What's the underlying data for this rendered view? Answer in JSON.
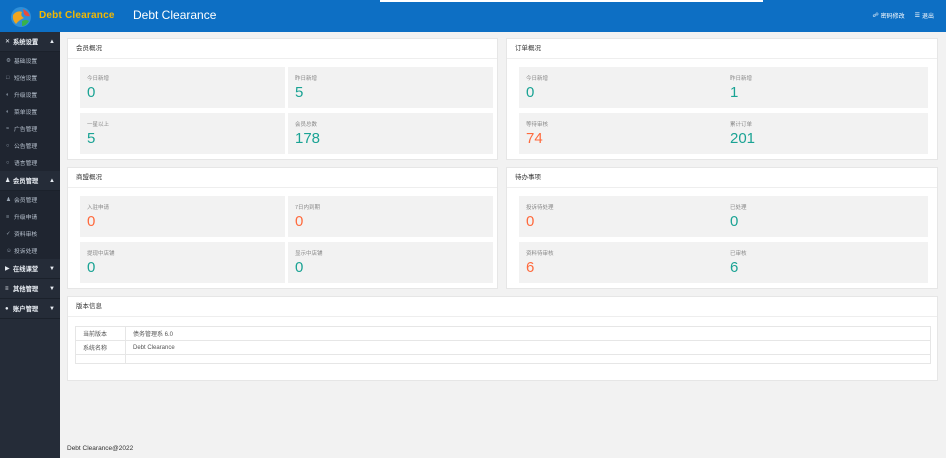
{
  "header": {
    "brand": "Debt Clearance",
    "title": "Debt Clearance",
    "change_password": "密码修改",
    "logout": "退出"
  },
  "sidebar": {
    "groups": [
      {
        "label": "系统设置",
        "items": [
          "基础设置",
          "短信设置",
          "升级设置",
          "菜单设置",
          "广告管理",
          "公告管理",
          "语言管理"
        ]
      },
      {
        "label": "会员管理",
        "items": [
          "会员管理",
          "升级申请",
          "资料审核",
          "投诉处理"
        ]
      },
      {
        "label": "在线课堂",
        "items": []
      },
      {
        "label": "其他管理",
        "items": []
      },
      {
        "label": "账户管理",
        "items": []
      }
    ]
  },
  "cards": {
    "members": {
      "title": "会员概况",
      "stats": [
        {
          "label": "今日新增",
          "value": "0"
        },
        {
          "label": "昨日新增",
          "value": "5"
        },
        {
          "label": "一星以上",
          "value": "5"
        },
        {
          "label": "会员总数",
          "value": "178"
        }
      ]
    },
    "orders": {
      "title": "订单概况",
      "stats": [
        {
          "label": "今日新增",
          "value": "0"
        },
        {
          "label": "昨日新增",
          "value": "1"
        },
        {
          "label": "等待审核",
          "value": "74"
        },
        {
          "label": "累计订单",
          "value": "201"
        }
      ]
    },
    "merchants": {
      "title": "商盟概况",
      "stats": [
        {
          "label": "入驻申请",
          "value": "0"
        },
        {
          "label": "7日内到期",
          "value": "0"
        },
        {
          "label": "提现中店铺",
          "value": "0"
        },
        {
          "label": "显示中店铺",
          "value": "0"
        }
      ]
    },
    "todo": {
      "title": "待办事项",
      "stats": [
        {
          "label": "投诉待处理",
          "value": "0"
        },
        {
          "label": "已处理",
          "value": "0"
        },
        {
          "label": "资料待审核",
          "value": "6"
        },
        {
          "label": "已审核",
          "value": "6"
        }
      ]
    },
    "version": {
      "title": "版本信息",
      "rows": [
        {
          "key": "当前版本",
          "value": "债务管理系 6.0"
        },
        {
          "key": "系统名称",
          "value": "Debt Clearance"
        }
      ]
    }
  },
  "footer": {
    "text": "Debt Clearance@2022"
  },
  "colors": {
    "header": "#0d6fc4",
    "sidebar": "#252c38",
    "value_green": "#1aa394",
    "value_orange": "#ff6a3d",
    "brand_yellow": "#f5b800"
  },
  "icons": {
    "logo": "globe-logo-icon",
    "change_password": "lock-icon",
    "logout": "menu-icon"
  }
}
